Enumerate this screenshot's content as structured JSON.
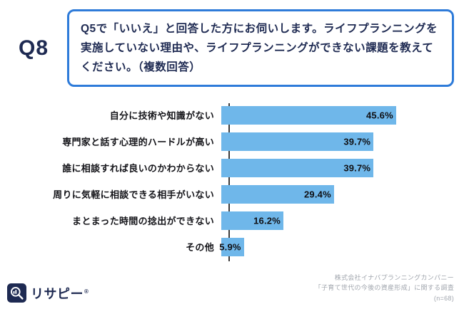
{
  "header": {
    "question_number": "Q8",
    "question_text": "Q5で「いいえ」と回答した方にお伺いします。ライフプランニングを実施していない理由や、ライフプランニングができない課題を教えてください。（複数回答）"
  },
  "chart_data": {
    "type": "bar",
    "orientation": "horizontal",
    "categories": [
      "自分に技術や知識がない",
      "専門家と話す心理的ハードルが高い",
      "誰に相談すれば良いのかわからない",
      "周りに気軽に相談できる相手がいない",
      "まとまった時間の捻出ができない",
      "その他"
    ],
    "values": [
      45.6,
      39.7,
      39.7,
      29.4,
      16.2,
      5.9
    ],
    "value_labels": [
      "45.6%",
      "39.7%",
      "39.7%",
      "29.4%",
      "16.2%",
      "5.9%"
    ],
    "xlim": [
      0,
      50
    ],
    "grid": false,
    "legend": false,
    "bar_color": "#6FB7EA"
  },
  "footer": {
    "logo_text": "リサピー",
    "logo_reg_mark": "®",
    "source_lines": [
      "株式会社イナバプランニングカンパニー",
      "「子育て世代の今後の資産形成」に関する調査",
      "(n=68)"
    ]
  },
  "colors": {
    "navy": "#1E2A52",
    "question_border": "#2E7BD9",
    "bar": "#6FB7EA",
    "source_text": "#A0A5AD"
  }
}
